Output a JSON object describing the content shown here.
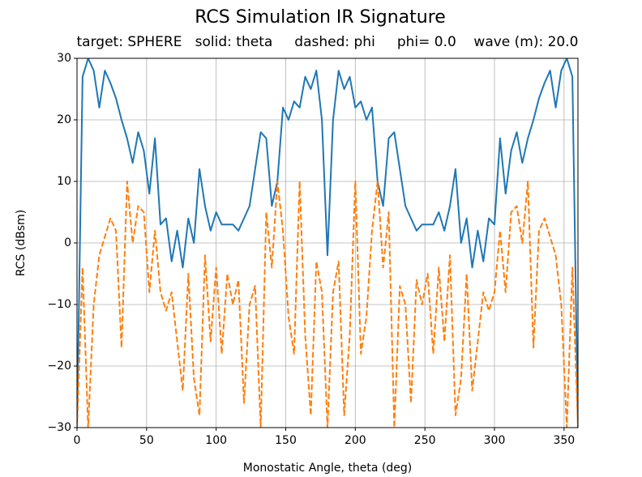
{
  "chart_data": {
    "type": "line",
    "title": "RCS Simulation IR Signature",
    "subtitle": "target: SPHERE   solid: theta     dashed: phi     phi= 0.0    wave (m): 20.0",
    "xlabel": "Monostatic Angle, theta (deg)",
    "ylabel": "RCS (dBsm)",
    "x": [
      0,
      4,
      8,
      12,
      16,
      20,
      24,
      28,
      32,
      36,
      40,
      44,
      48,
      52,
      56,
      60,
      64,
      68,
      72,
      76,
      80,
      84,
      88,
      92,
      96,
      100,
      104,
      108,
      112,
      116,
      120,
      124,
      128,
      132,
      136,
      140,
      144,
      148,
      152,
      156,
      160,
      164,
      168,
      172,
      176,
      180,
      184,
      188,
      192,
      196,
      200,
      204,
      208,
      212,
      216,
      220,
      224,
      228,
      232,
      236,
      240,
      244,
      248,
      252,
      256,
      260,
      264,
      268,
      272,
      276,
      280,
      284,
      288,
      292,
      296,
      300,
      304,
      308,
      312,
      316,
      320,
      324,
      328,
      332,
      336,
      340,
      344,
      348,
      352,
      356,
      360
    ],
    "series": [
      {
        "name": "theta",
        "color": "#1f77b4",
        "dashed": false,
        "values": [
          -30,
          27,
          30,
          28,
          22,
          28,
          26,
          23.5,
          20,
          17,
          13,
          18,
          15,
          8,
          17,
          3,
          4,
          -3,
          2,
          -4,
          4,
          0,
          12,
          6,
          2,
          5,
          3,
          3,
          3,
          2,
          4,
          6,
          12,
          18,
          17,
          6,
          10,
          22,
          20,
          23,
          22,
          27,
          25,
          28,
          20,
          -2,
          20,
          28,
          25,
          27,
          22,
          23,
          20,
          22,
          10,
          6,
          17,
          18,
          12,
          6,
          4,
          2,
          3,
          3,
          3,
          5,
          2,
          6,
          12,
          0,
          4,
          -4,
          2,
          -3,
          4,
          3,
          17,
          8,
          15,
          18,
          13,
          17,
          20,
          23.5,
          26,
          28,
          22,
          28,
          30,
          27,
          -30
        ]
      },
      {
        "name": "phi",
        "color": "#ff7f0e",
        "dashed": true,
        "values": [
          -30,
          -4,
          -30,
          -10,
          -2,
          1,
          4,
          2,
          -17,
          10,
          0,
          6,
          5,
          -8,
          2,
          -8,
          -11,
          -8,
          -16,
          -24,
          -5,
          -22,
          -28,
          -2,
          -16,
          -4,
          -18,
          -5,
          -10,
          -6,
          -26,
          -10,
          -7,
          -30,
          5,
          -4,
          10,
          2,
          -12,
          -18,
          10,
          -15,
          -28,
          -3,
          -8,
          -30,
          -8,
          -3,
          -28,
          -15,
          10,
          -18,
          -12,
          2,
          10,
          -4,
          5,
          -30,
          -7,
          -10,
          -26,
          -6,
          -10,
          -5,
          -18,
          -4,
          -16,
          -2,
          -28,
          -22,
          -5,
          -24,
          -16,
          -8,
          -11,
          -8,
          2,
          -8,
          5,
          6,
          0,
          10,
          -17,
          2,
          4,
          1,
          -2,
          -10,
          -30,
          -4,
          -30
        ]
      }
    ],
    "xlim": [
      0,
      360
    ],
    "ylim": [
      -30,
      30
    ],
    "xticks": [
      0,
      50,
      100,
      150,
      200,
      250,
      300,
      350
    ],
    "yticks": [
      {
        "value": -30,
        "label": "−30"
      },
      {
        "value": -20,
        "label": "−20"
      },
      {
        "value": -10,
        "label": "−10"
      },
      0,
      10,
      20,
      30
    ],
    "grid": true
  }
}
